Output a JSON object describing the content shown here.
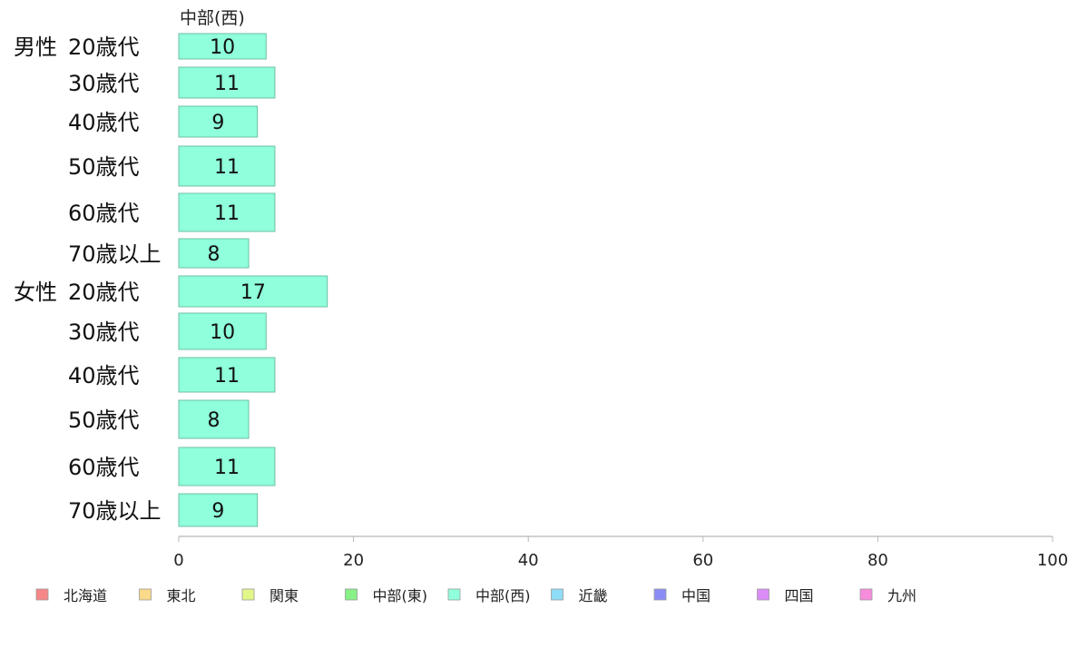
{
  "chart_data": {
    "type": "bar",
    "orientation": "horizontal",
    "series_title": "中部(西)",
    "groups": [
      {
        "label": "男性",
        "categories": [
          "20歳代",
          "30歳代",
          "40歳代",
          "50歳代",
          "60歳代",
          "70歳以上"
        ],
        "values": [
          10,
          11,
          9,
          11,
          11,
          8
        ]
      },
      {
        "label": "女性",
        "categories": [
          "20歳代",
          "30歳代",
          "40歳代",
          "50歳代",
          "60歳代",
          "70歳以上"
        ],
        "values": [
          17,
          10,
          11,
          8,
          11,
          9
        ]
      }
    ],
    "xlim": [
      0,
      100
    ],
    "xticks": [
      0,
      20,
      40,
      60,
      80,
      100
    ],
    "bar_color": "#8fffdc",
    "bar_stroke": "#6fbfa5",
    "legend_position": "bottom",
    "legend": [
      {
        "label": "北海道",
        "color": "#f78787"
      },
      {
        "label": "東北",
        "color": "#fbd98a"
      },
      {
        "label": "関東",
        "color": "#e2f78a"
      },
      {
        "label": "中部(東)",
        "color": "#87f087"
      },
      {
        "label": "中部(西)",
        "color": "#8fffdc"
      },
      {
        "label": "近畿",
        "color": "#8fdcf7"
      },
      {
        "label": "中国",
        "color": "#8c8cf7"
      },
      {
        "label": "四国",
        "color": "#db8cf7"
      },
      {
        "label": "九州",
        "color": "#f78cdc"
      }
    ]
  }
}
